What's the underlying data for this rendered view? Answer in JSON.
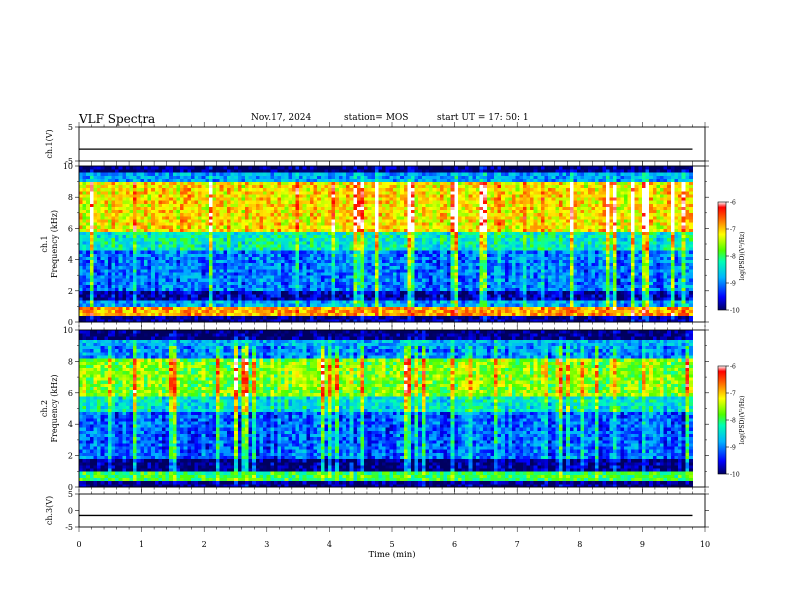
{
  "header": {
    "title": "VLF Spectra",
    "date": "Nov.17, 2024",
    "station": "station= MOS",
    "start": "start  UT  =   17: 50: 1"
  },
  "chart_data": [
    {
      "type": "line",
      "panel": "ch1-waveform",
      "ylabel": "ch.1(V)",
      "ylim": [
        -5,
        5
      ],
      "yticks": [
        5,
        -5
      ],
      "x": [
        0,
        9.8
      ],
      "values": [
        -1.5,
        -1.5
      ],
      "xlim": [
        0,
        10
      ]
    },
    {
      "type": "heatmap",
      "panel": "ch1-spectrogram",
      "ylabel": "ch.1\nFrequency (kHz)",
      "ylim": [
        0,
        10
      ],
      "yticks": [
        0,
        2,
        4,
        6,
        8,
        10
      ],
      "xlim": [
        0,
        10
      ],
      "data_xrange": [
        0,
        9.8
      ],
      "colorbar": {
        "label": "log(PSD)(V²/Hz)",
        "range": [
          -10,
          -6
        ],
        "ticks": [
          -6,
          -7,
          -8,
          -9,
          -10
        ]
      },
      "bands": [
        {
          "f": [
            0,
            0.3
          ],
          "level": -9.8
        },
        {
          "f": [
            0.3,
            0.9
          ],
          "level": -6.8
        },
        {
          "f": [
            0.9,
            1.3
          ],
          "level": -8.6
        },
        {
          "f": [
            1.3,
            1.9
          ],
          "level": -9.5
        },
        {
          "f": [
            1.9,
            4.5
          ],
          "level": -8.8
        },
        {
          "f": [
            4.5,
            5.8
          ],
          "level": -8.1
        },
        {
          "f": [
            5.8,
            8.9
          ],
          "level": -6.9
        },
        {
          "f": [
            8.9,
            9.6
          ],
          "level": -8.8
        },
        {
          "f": [
            9.6,
            10
          ],
          "level": -9.9
        }
      ]
    },
    {
      "type": "heatmap",
      "panel": "ch2-spectrogram",
      "ylabel": "ch.2\nFrequency (kHz)",
      "ylim": [
        0,
        10
      ],
      "yticks": [
        0,
        2,
        4,
        6,
        8,
        10
      ],
      "xlim": [
        0,
        10
      ],
      "data_xrange": [
        0,
        9.8
      ],
      "colorbar": {
        "label": "log(PSD)(V²/Hz)",
        "range": [
          -10,
          -6
        ],
        "ticks": [
          -6,
          -7,
          -8,
          -9,
          -10
        ]
      },
      "bands": [
        {
          "f": [
            0,
            0.3
          ],
          "level": -9.9
        },
        {
          "f": [
            0.3,
            1.0
          ],
          "level": -7.9
        },
        {
          "f": [
            1.0,
            1.8
          ],
          "level": -9.7
        },
        {
          "f": [
            1.8,
            4.8
          ],
          "level": -8.9
        },
        {
          "f": [
            4.8,
            5.8
          ],
          "level": -8.2
        },
        {
          "f": [
            5.8,
            8.2
          ],
          "level": -7.4
        },
        {
          "f": [
            8.2,
            9.3
          ],
          "level": -8.7
        },
        {
          "f": [
            9.3,
            10
          ],
          "level": -9.9
        }
      ]
    },
    {
      "type": "line",
      "panel": "ch3-waveform",
      "ylabel": "ch.3(V)",
      "ylim": [
        -5,
        5
      ],
      "yticks": [
        5,
        0,
        -5
      ],
      "x": [
        0,
        9.8
      ],
      "values": [
        -1.5,
        -1.5
      ],
      "xlim": [
        0,
        10
      ],
      "xlabel": "Time  (min)",
      "xticks": [
        0,
        1,
        2,
        3,
        4,
        5,
        6,
        7,
        8,
        9,
        10
      ]
    }
  ]
}
